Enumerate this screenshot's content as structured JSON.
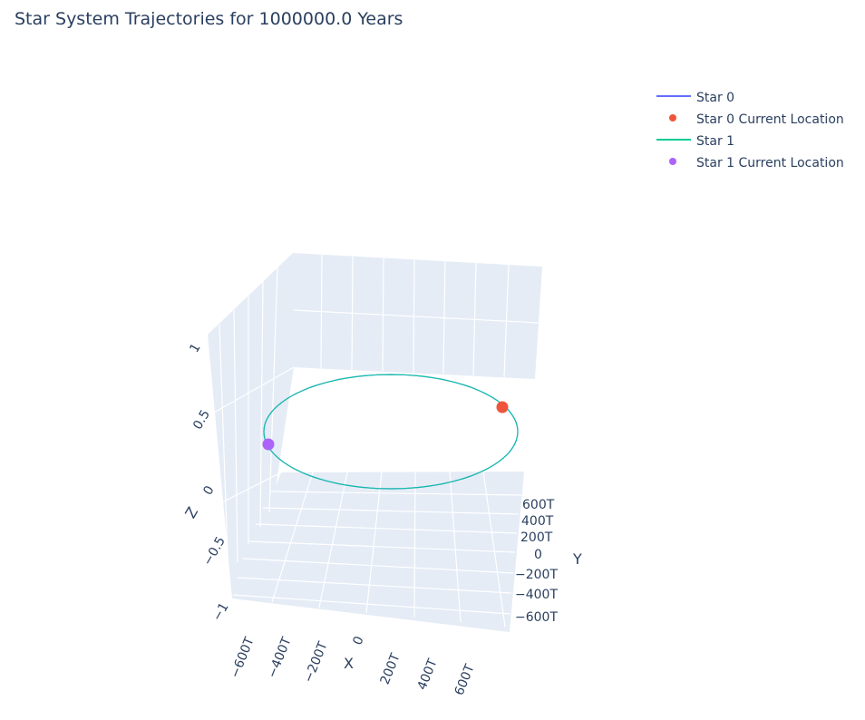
{
  "chart_data": {
    "type": "scatter3d",
    "title": "Star System Trajectories for 1000000.0 Years",
    "xlabel": "X",
    "ylabel": "Y",
    "zlabel": "Z",
    "x_ticks": [
      "−600T",
      "−400T",
      "−200T",
      "0",
      "200T",
      "400T",
      "600T"
    ],
    "y_ticks": [
      "600T",
      "400T",
      "200T",
      "0",
      "−200T",
      "−400T",
      "−600T"
    ],
    "z_ticks": [
      "1",
      "0.5",
      "0",
      "−0.5",
      "−1"
    ],
    "legend_position": "top-right",
    "grid": true,
    "series": [
      {
        "name": "Star 0",
        "kind": "line",
        "color": "#636efa",
        "trajectory": "ellipse",
        "z": 0
      },
      {
        "name": "Star 0 Current Location",
        "kind": "marker",
        "color": "#EF553B"
      },
      {
        "name": "Star 1",
        "kind": "line",
        "color": "#00cc96",
        "trajectory": "ellipse",
        "z": 0
      },
      {
        "name": "Star 1 Current Location",
        "kind": "marker",
        "color": "#ab63fa"
      }
    ],
    "colors": {
      "background": "#E5ECF6",
      "grid": "#ffffff",
      "text": "#2a3f5f"
    }
  }
}
